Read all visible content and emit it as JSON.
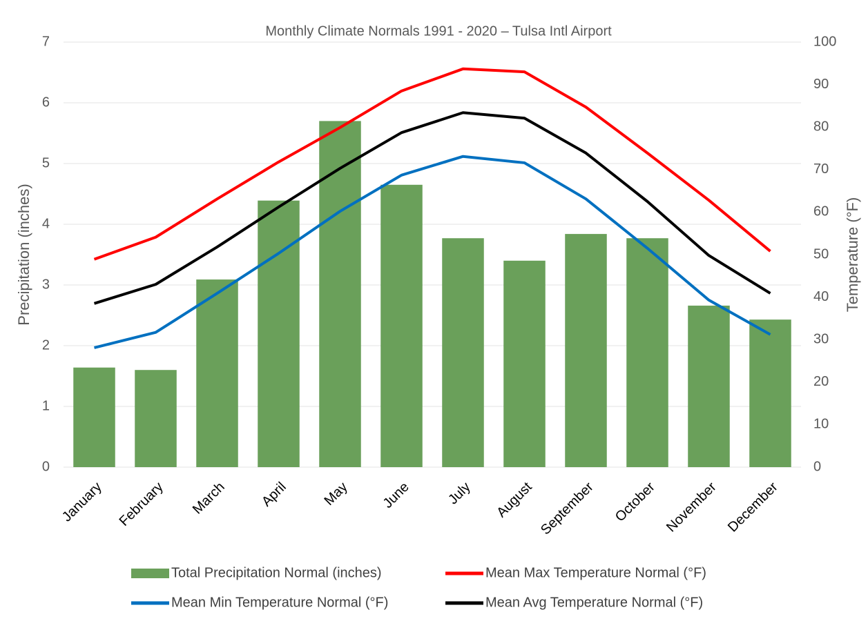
{
  "chart_data": {
    "type": "bar_line",
    "title": "Monthly Climate Normals 1991 - 2020 – Tulsa Intl Airport",
    "ylabel": "Precipitation (inches)",
    "y2label": "Temperature (°F)",
    "categories": [
      "January",
      "February",
      "March",
      "April",
      "May",
      "June",
      "July",
      "August",
      "September",
      "October",
      "November",
      "December"
    ],
    "series": [
      {
        "name": "Total Precipitation Normal (inches)",
        "type": "bar",
        "color": "#6aa05a",
        "values": [
          1.64,
          1.6,
          3.09,
          4.39,
          5.7,
          4.65,
          3.77,
          3.4,
          3.84,
          3.77,
          2.66,
          2.43
        ]
      },
      {
        "name": "Mean Max Temperature Normal (°F)",
        "type": "line",
        "axis": "y2",
        "color": "#ff0000",
        "values": [
          48.9,
          54.1,
          63.1,
          71.8,
          79.9,
          88.5,
          93.7,
          93.0,
          84.7,
          73.9,
          62.8,
          50.8
        ]
      },
      {
        "name": "Mean Min Temperature Normal (°F)",
        "type": "line",
        "axis": "y2",
        "color": "#0070c0",
        "values": [
          28.1,
          31.7,
          40.9,
          50.3,
          60.2,
          68.7,
          73.1,
          71.6,
          63.1,
          51.5,
          39.3,
          31.2
        ]
      },
      {
        "name": "Mean Avg Temperature Normal (°F)",
        "type": "line",
        "axis": "y2",
        "color": "#000000",
        "values": [
          38.5,
          43.0,
          51.8,
          61.2,
          70.3,
          78.7,
          83.4,
          82.1,
          73.9,
          62.5,
          49.8,
          40.9
        ]
      }
    ],
    "ylim": [
      0,
      7
    ],
    "yticks": [
      0,
      1,
      2,
      3,
      4,
      5,
      6,
      7
    ],
    "y2lim": [
      0,
      100
    ],
    "y2ticks": [
      0,
      10,
      20,
      30,
      40,
      50,
      60,
      70,
      80,
      90,
      100
    ],
    "grid": true
  }
}
